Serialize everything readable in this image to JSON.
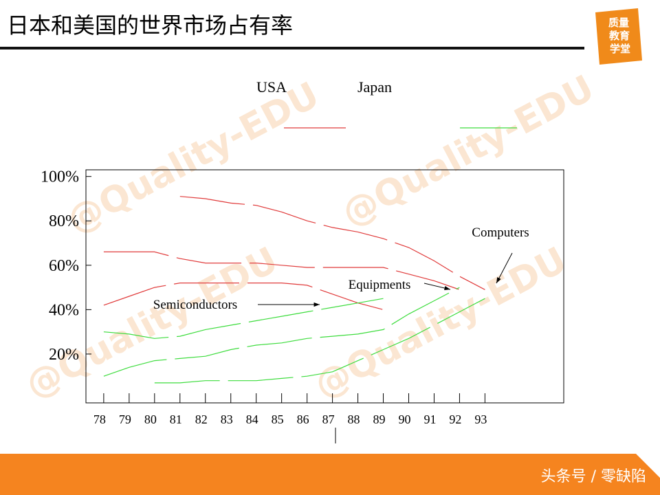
{
  "header": {
    "title": "日本和美国的世界市场占有率",
    "logo": [
      "质量",
      "教育",
      "学堂"
    ]
  },
  "footer": {
    "caption": "头条号 / 零缺陷"
  },
  "watermark": "@Quality-EDU",
  "chart_data": {
    "type": "line",
    "legend": [
      {
        "label": "USA",
        "color": "#e03a3a"
      },
      {
        "label": "Japan",
        "color": "#3ddc3d"
      }
    ],
    "xlim": [
      77.3,
      96.1
    ],
    "ylim": [
      0,
      103
    ],
    "xticks": [
      78,
      79,
      80,
      81,
      82,
      83,
      84,
      85,
      86,
      87,
      88,
      89,
      90,
      91,
      92,
      93
    ],
    "yticks": [
      {
        "value": 100,
        "label": "100%"
      },
      {
        "value": 80,
        "label": "80%"
      },
      {
        "value": 60,
        "label": "60%"
      },
      {
        "value": 40,
        "label": "40%"
      },
      {
        "value": 20,
        "label": "20%"
      }
    ],
    "series": [
      {
        "color": "#e03a3a",
        "x": [
          81,
          82,
          83,
          84,
          85,
          86,
          87,
          88,
          89,
          90,
          91,
          92,
          93
        ],
        "values": [
          91,
          90,
          88,
          87,
          84,
          80,
          77,
          75,
          72,
          68,
          62,
          55,
          49
        ]
      },
      {
        "color": "#e03a3a",
        "x": [
          78,
          79,
          80,
          81,
          82,
          83,
          84,
          85,
          86,
          87,
          88,
          89,
          90,
          91,
          92
        ],
        "values": [
          66,
          66,
          66,
          63,
          61,
          61,
          61,
          60,
          59,
          59,
          59,
          59,
          56,
          53,
          49
        ]
      },
      {
        "color": "#e03a3a",
        "x": [
          78,
          79,
          80,
          81,
          82,
          83,
          84,
          85,
          86,
          87,
          88,
          89
        ],
        "values": [
          42,
          46,
          50,
          52,
          52,
          52,
          52,
          52,
          51,
          47,
          43,
          40
        ]
      },
      {
        "color": "#3ddc3d",
        "x": [
          78,
          79,
          80,
          81,
          82,
          83,
          84,
          85,
          86,
          87,
          88,
          89
        ],
        "values": [
          30,
          29,
          27,
          28,
          31,
          33,
          35,
          37,
          39,
          41,
          43,
          45
        ]
      },
      {
        "color": "#3ddc3d",
        "x": [
          78,
          79,
          80,
          81,
          82,
          83,
          84,
          85,
          86,
          87,
          88,
          89,
          90,
          91,
          92
        ],
        "values": [
          10,
          14,
          17,
          18,
          19,
          22,
          24,
          25,
          27,
          28,
          29,
          31,
          38,
          44,
          50
        ]
      },
      {
        "color": "#3ddc3d",
        "x": [
          80,
          81,
          82,
          83,
          84,
          85,
          86,
          87,
          88,
          89,
          90,
          91,
          92,
          93
        ],
        "values": [
          7,
          7,
          8,
          8,
          8,
          9,
          10,
          12,
          17,
          22,
          27,
          33,
          39,
          45
        ]
      }
    ],
    "annotations": [
      "Computers",
      "Equipments",
      "Semiconductors"
    ]
  }
}
